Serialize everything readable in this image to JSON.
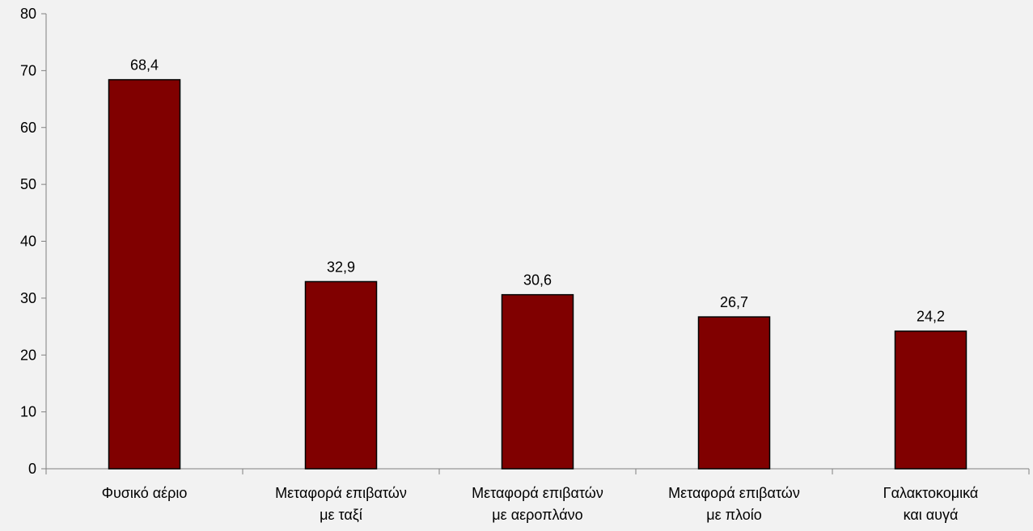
{
  "chart_data": {
    "type": "bar",
    "categories": [
      [
        "Φυσικό αέριο"
      ],
      [
        "Μεταφορά επιβατών",
        "με ταξί"
      ],
      [
        "Μεταφορά επιβατών",
        "με αεροπλάνο"
      ],
      [
        "Μεταφορά επιβατών",
        "με πλοίο"
      ],
      [
        "Γαλακτοκομικά",
        "και αυγά"
      ]
    ],
    "values": [
      68.4,
      32.9,
      30.6,
      26.7,
      24.2
    ],
    "value_labels": [
      "68,4",
      "32,9",
      "30,6",
      "26,7",
      "24,2"
    ],
    "ylim": [
      0,
      80
    ],
    "yticks": [
      0,
      10,
      20,
      30,
      40,
      50,
      60,
      70,
      80
    ],
    "grid": false,
    "bar_color": "#800000",
    "bar_border_color": "#000000",
    "background_color": "#f2f2f2"
  }
}
